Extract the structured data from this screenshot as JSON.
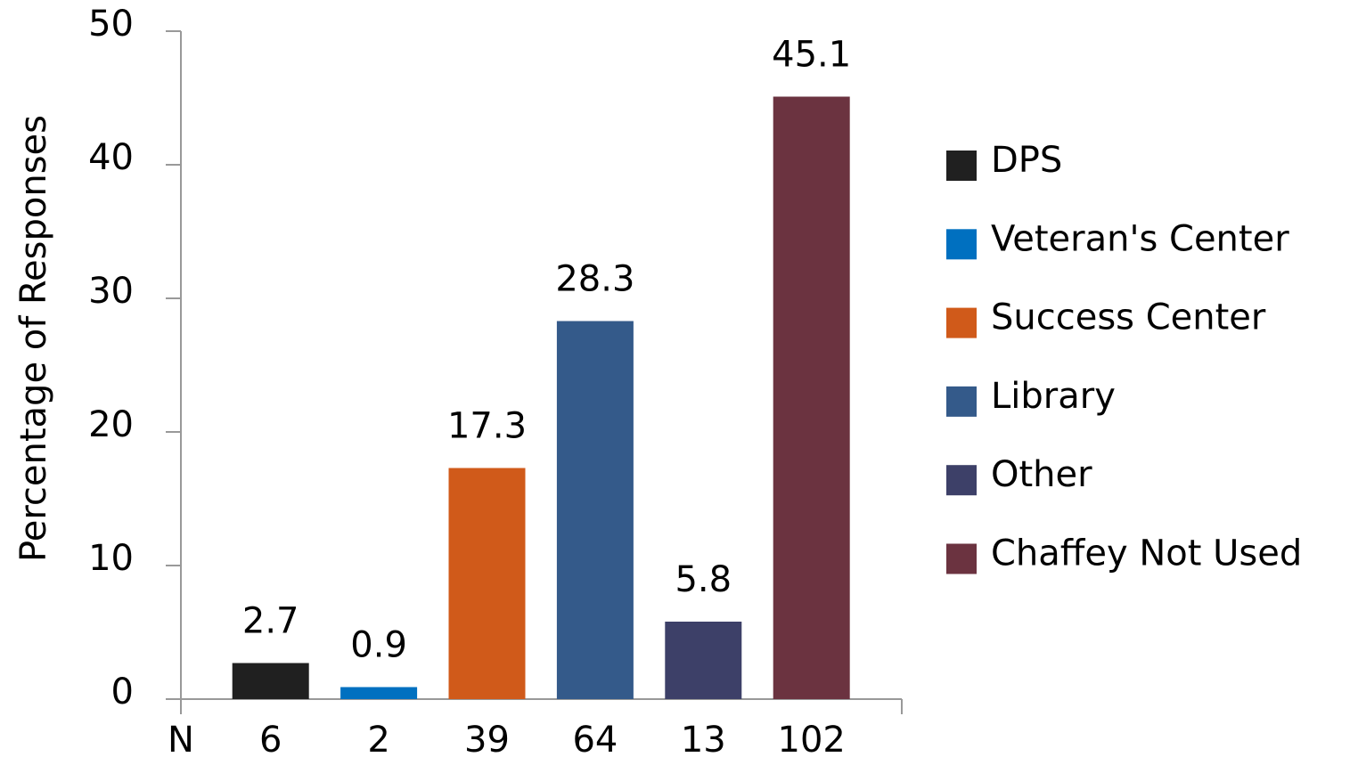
{
  "chart_data": {
    "type": "bar",
    "categories": [
      "DPS",
      "Veteran's Center",
      "Success Center",
      "Library",
      "Other",
      "Chaffey Not Used"
    ],
    "values": [
      2.7,
      0.9,
      17.3,
      28.3,
      5.8,
      45.1
    ],
    "colors": [
      "#202020",
      "#0070c0",
      "#d05a1a",
      "#345a8a",
      "#3d4068",
      "#6b3340"
    ],
    "n_label": "N",
    "n_values": [
      6,
      2,
      39,
      64,
      13,
      102
    ],
    "y_label": "Percentage of Responses",
    "ylim": [
      0,
      50
    ],
    "yticks": [
      0,
      10,
      20,
      30,
      40,
      50
    ],
    "legend": "right"
  }
}
